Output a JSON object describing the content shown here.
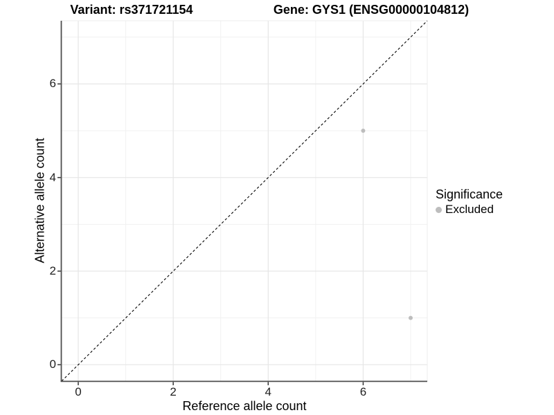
{
  "titles": {
    "left": "Variant: rs371721154",
    "right": "Gene: GYS1 (ENSG00000104812)"
  },
  "chart_data": {
    "type": "scatter",
    "title_left": "Variant: rs371721154",
    "title_right": "Gene: GYS1 (ENSG00000104812)",
    "xlabel": "Reference allele count",
    "ylabel": "Alternative allele count",
    "xlim": [
      -0.35,
      7.35
    ],
    "ylim": [
      -0.35,
      7.35
    ],
    "x_major_ticks": [
      0,
      2,
      4,
      6
    ],
    "x_tick_labels": [
      "0",
      "2",
      "4",
      "6"
    ],
    "x_minor_ticks": [
      1,
      3,
      5,
      7
    ],
    "y_major_ticks": [
      0,
      2,
      4,
      6
    ],
    "y_tick_labels": [
      "0",
      "2",
      "4",
      "6"
    ],
    "y_minor_ticks": [
      1,
      3,
      5,
      7
    ],
    "grid": true,
    "identity_line": {
      "slope": 1,
      "intercept": 0,
      "style": "dashed",
      "color": "#000000"
    },
    "series": [
      {
        "name": "Excluded",
        "color": "#bdbdbd",
        "points": [
          {
            "x": 6,
            "y": 5
          },
          {
            "x": 7,
            "y": 1
          }
        ]
      }
    ],
    "legend": {
      "title": "Significance",
      "position": "right",
      "entries": [
        {
          "label": "Excluded",
          "color": "#bdbdbd"
        }
      ]
    },
    "colors": {
      "axis_line": "#4d4d4d",
      "tick_mark": "#333333",
      "grid_major": "#e6e6e6",
      "grid_minor": "#f1f1f1",
      "panel_edge": "#ececec",
      "point": "#bdbdbd"
    }
  }
}
